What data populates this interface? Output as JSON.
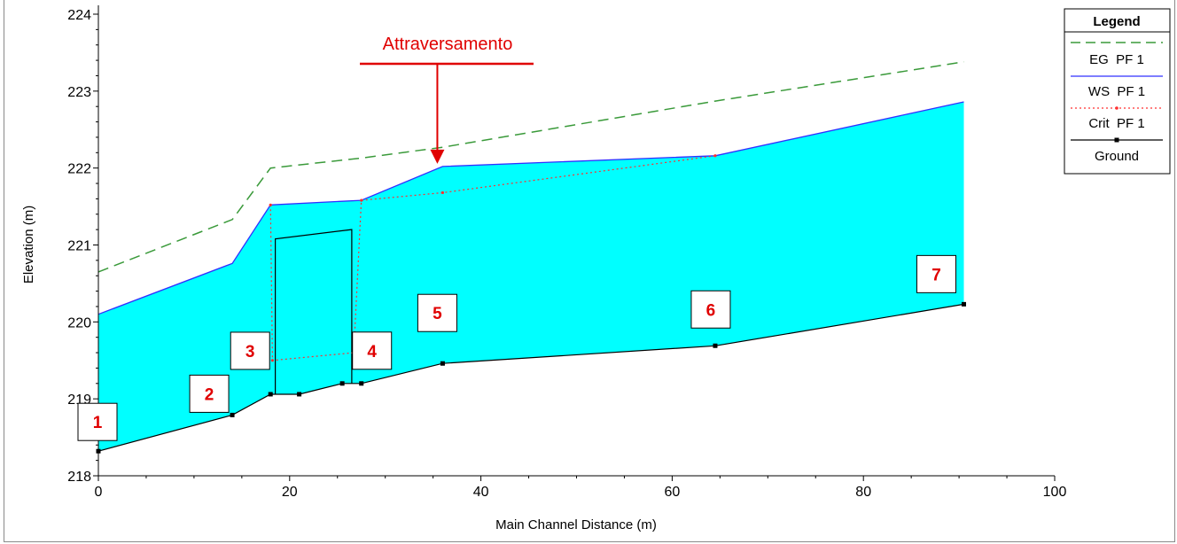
{
  "chart_data": {
    "type": "area",
    "xlabel": "Main Channel Distance (m)",
    "ylabel": "Elevation (m)",
    "xlim": [
      0,
      100
    ],
    "ylim": [
      218,
      224
    ],
    "x_ticks": [
      "0",
      "20",
      "40",
      "60",
      "80",
      "100"
    ],
    "y_ticks": [
      "218",
      "219",
      "220",
      "221",
      "222",
      "223",
      "224"
    ],
    "grid": false,
    "legend_position": "top-right",
    "legend": {
      "title": "Legend",
      "entries": [
        "EG  PF 1",
        "WS  PF 1",
        "Crit  PF 1",
        "Ground"
      ]
    },
    "colors": {
      "water_fill": "#00ffff",
      "eg": "#3a9a3a",
      "ws": "#3030ff",
      "crit": "#ff3030",
      "ground": "#000000",
      "annotation": "#ee0000"
    },
    "series": [
      {
        "name": "EG  PF 1",
        "x": [
          0,
          14,
          18,
          27.5,
          36,
          64.5,
          90.5
        ],
        "y": [
          220.65,
          221.33,
          222.0,
          222.13,
          222.27,
          222.87,
          223.38
        ]
      },
      {
        "name": "WS  PF 1",
        "x": [
          0,
          14,
          18,
          27.5,
          36,
          64.5,
          90.5
        ],
        "y": [
          220.1,
          220.76,
          221.52,
          221.58,
          222.02,
          222.16,
          222.86
        ]
      },
      {
        "name": "Crit  PF 1",
        "x": [
          18,
          18.2,
          26.7,
          27.5,
          36,
          64.5
        ],
        "y": [
          221.52,
          219.5,
          219.6,
          221.58,
          221.68,
          222.16
        ]
      },
      {
        "name": "Ground",
        "x": [
          0,
          14,
          18,
          21,
          25.5,
          27.5,
          36,
          64.5,
          90.5
        ],
        "y": [
          218.32,
          218.79,
          219.06,
          219.06,
          219.2,
          219.2,
          219.46,
          219.69,
          220.23
        ]
      }
    ],
    "structure": {
      "x": [
        18.5,
        18.5,
        26.5,
        26.5
      ],
      "y": [
        219.06,
        221.08,
        221.2,
        219.2
      ]
    },
    "annotations": [
      {
        "text": "Attraversamento",
        "x": 36,
        "y": 222.02
      }
    ],
    "section_labels": [
      {
        "text": "1",
        "x": 0,
        "y": 218.32
      },
      {
        "text": "2",
        "x": 14,
        "y": 218.79
      },
      {
        "text": "3",
        "x": 18,
        "y": 219.06
      },
      {
        "text": "4",
        "x": 27.5,
        "y": 219.2
      },
      {
        "text": "5",
        "x": 36,
        "y": 219.46
      },
      {
        "text": "6",
        "x": 64.5,
        "y": 219.69
      },
      {
        "text": "7",
        "x": 90.5,
        "y": 220.23
      }
    ]
  }
}
